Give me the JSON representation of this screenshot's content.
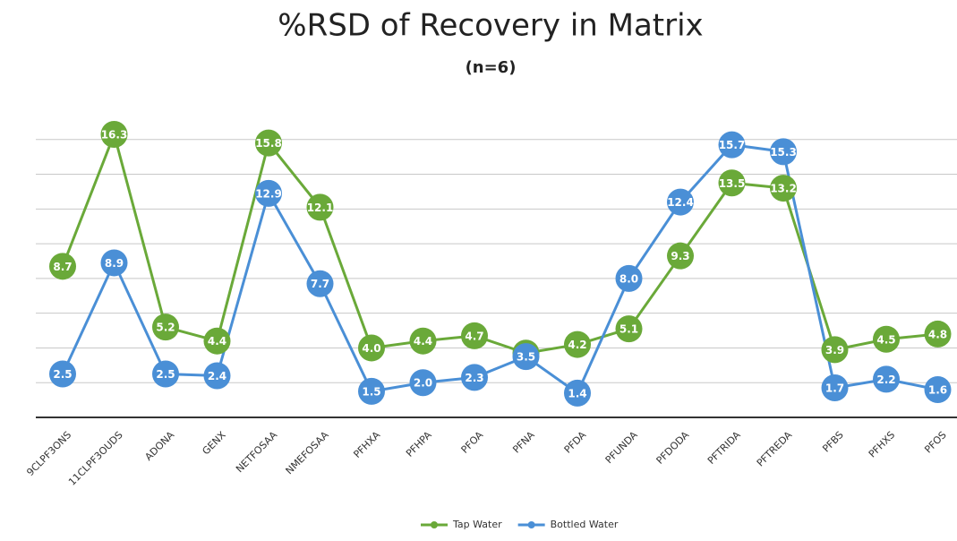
{
  "chart_data": {
    "type": "line",
    "title": "%RSD of Recovery in Matrix",
    "subtitle": "(n=6)",
    "categories": [
      "9CLPF3ONS",
      "11CLPF3OUDS",
      "ADONA",
      "GENX",
      "NETFOSAA",
      "NMEFOSAA",
      "PFHXA",
      "PFHPA",
      "PFOA",
      "PFNA",
      "PFDA",
      "PFUNDA",
      "PFDODA",
      "PFTRIDA",
      "PFTREDA",
      "PFBS",
      "PFHXS",
      "PFOS"
    ],
    "series": [
      {
        "name": "Tap Water",
        "color": "#6aa939",
        "values": [
          8.7,
          16.3,
          5.2,
          4.4,
          15.8,
          12.1,
          4,
          4.4,
          4.7,
          3.7,
          4.2,
          5.1,
          9.3,
          13.5,
          13.2,
          3.9,
          4.5,
          4.8
        ],
        "value_labels": [
          "8.7",
          "16.3",
          "5.2",
          "4.4",
          "15.8",
          "12.1",
          "4.0",
          "4.4",
          "4.7",
          "3.7",
          "4.2",
          "5.1",
          "9.3",
          "13.5",
          "13.2",
          "3.9",
          "4.5",
          "4.8"
        ]
      },
      {
        "name": "Bottled Water",
        "color": "#4a8fd6",
        "values": [
          2.5,
          8.9,
          2.5,
          2.4,
          12.9,
          7.7,
          1.5,
          2,
          2.3,
          3.5,
          1.4,
          8,
          12.4,
          15.7,
          15.3,
          1.7,
          2.2,
          1.6
        ],
        "value_labels": [
          "2.5",
          "8.9",
          "2.5",
          "2.4",
          "12.9",
          "7.7",
          "1.5",
          "2.0",
          "2.3",
          "3.5",
          "1.4",
          "8.0",
          "12.4",
          "15.7",
          "15.3",
          "1.7",
          "2.2",
          "1.6"
        ]
      }
    ],
    "ylim": [
      0,
      18
    ],
    "yticks": [
      0,
      2,
      4,
      6,
      8,
      10,
      12,
      14,
      16
    ],
    "grid": true,
    "legend": "bottom"
  }
}
